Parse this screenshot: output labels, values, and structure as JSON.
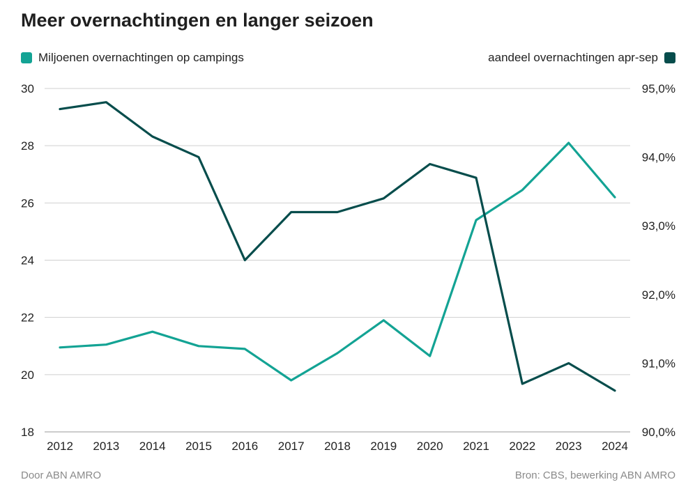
{
  "chart_data": {
    "type": "line",
    "title": "Meer overnachtingen en langer seizoen",
    "x": [
      "2012",
      "2013",
      "2014",
      "2015",
      "2016",
      "2017",
      "2018",
      "2019",
      "2020",
      "2021",
      "2022",
      "2023",
      "2024"
    ],
    "series": [
      {
        "name": "Miljoenen overnachtingen op campings",
        "axis": "left",
        "color": "#13a394",
        "values": [
          20.95,
          21.05,
          21.5,
          21.0,
          20.9,
          19.8,
          20.75,
          21.9,
          20.65,
          25.4,
          26.45,
          28.1,
          26.2
        ]
      },
      {
        "name": "aandeel overnachtingen apr-sep",
        "axis": "right",
        "color": "#074d4c",
        "values": [
          94.7,
          94.8,
          94.3,
          94.0,
          92.5,
          93.2,
          93.2,
          93.4,
          93.9,
          93.7,
          90.7,
          91.0,
          90.6
        ]
      }
    ],
    "y_left": {
      "lim": [
        18,
        30
      ],
      "ticks": [
        18,
        20,
        22,
        24,
        26,
        28,
        30
      ]
    },
    "y_right": {
      "lim": [
        90,
        95
      ],
      "ticks": [
        "90,0%",
        "91,0%",
        "92,0%",
        "93,0%",
        "94,0%",
        "95,0%"
      ]
    },
    "grid": true,
    "legend": "top"
  },
  "footer": {
    "left": "Door ABN AMRO",
    "right": "Bron:   CBS, bewerking ABN AMRO"
  }
}
